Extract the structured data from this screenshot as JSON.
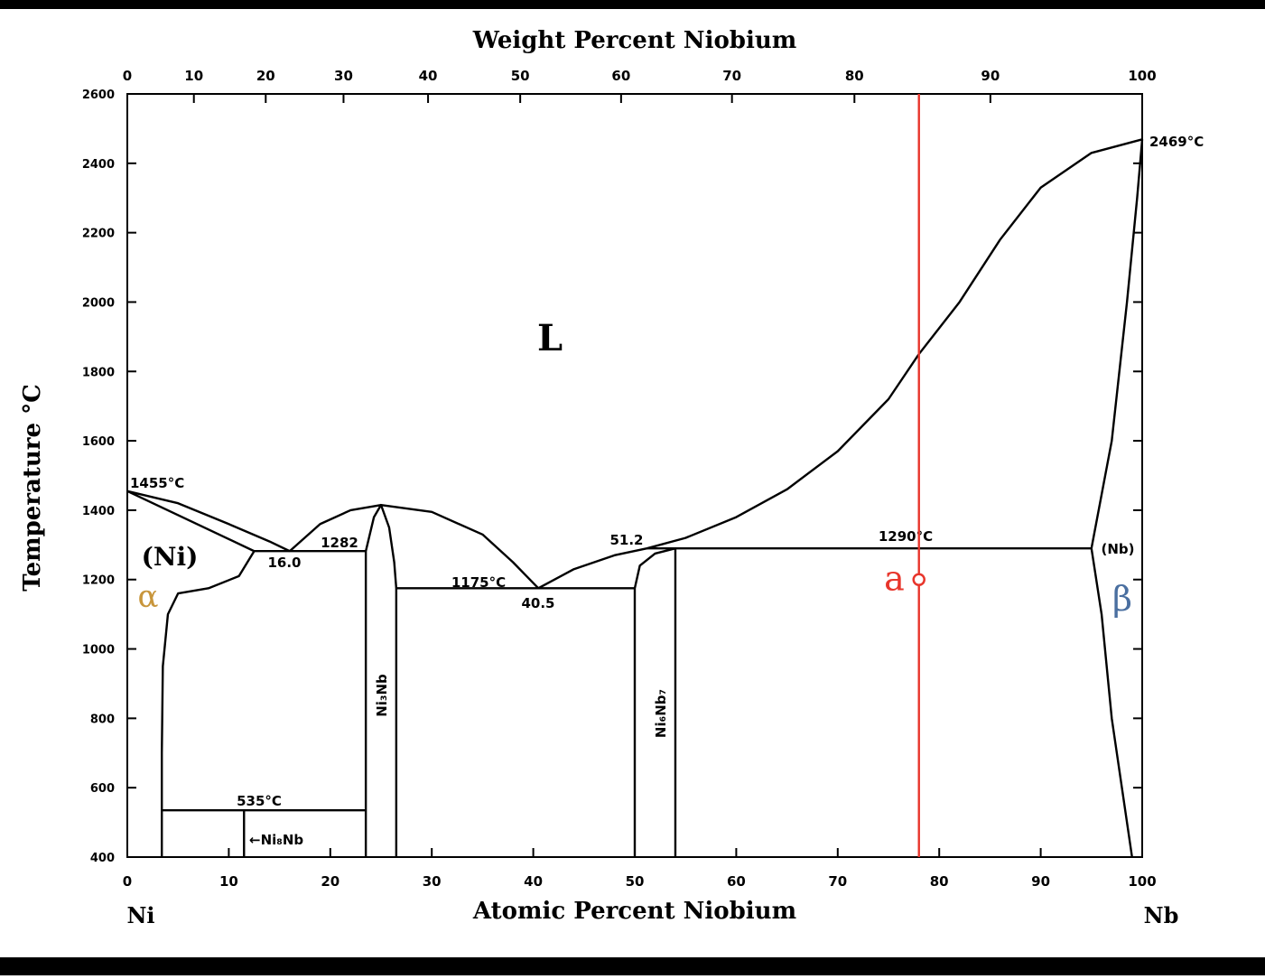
{
  "chart_data": {
    "type": "phase",
    "title": "Weight Percent Niobium",
    "x_label": "Atomic Percent Niobium",
    "y_label": "Temperature °C",
    "left_element": "Ni",
    "right_element": "Nb",
    "xlim": [
      0,
      100
    ],
    "ylim": [
      400,
      2600
    ],
    "xticks": [
      0,
      10,
      20,
      30,
      40,
      50,
      60,
      70,
      80,
      90,
      100
    ],
    "yticks": [
      400,
      600,
      800,
      1000,
      1200,
      1400,
      1600,
      1800,
      2000,
      2200,
      2400,
      2600
    ],
    "x2ticks": [
      0,
      10,
      20,
      30,
      40,
      50,
      60,
      70,
      80,
      90,
      100
    ],
    "grid": false,
    "series": [
      {
        "color": "#000000",
        "x": [
          0,
          5,
          10,
          14,
          16
        ],
        "values": [
          1455,
          1420,
          1360,
          1310,
          1282
        ]
      },
      {
        "color": "#000000",
        "x": [
          0,
          12.5
        ],
        "values": [
          1455,
          1282
        ]
      },
      {
        "color": "#000000",
        "x": [
          12.5,
          11,
          8,
          5,
          4,
          3.5,
          3.4,
          3.4
        ],
        "values": [
          1282,
          1210,
          1175,
          1160,
          1100,
          950,
          700,
          400
        ]
      },
      {
        "color": "#000000",
        "x": [
          12.5,
          23.5
        ],
        "values": [
          1282,
          1282
        ]
      },
      {
        "color": "#000000",
        "x": [
          16,
          19,
          22,
          25
        ],
        "values": [
          1282,
          1360,
          1400,
          1415
        ]
      },
      {
        "color": "#000000",
        "x": [
          25,
          30,
          35,
          38,
          40.5
        ],
        "values": [
          1415,
          1395,
          1330,
          1250,
          1175
        ]
      },
      {
        "color": "#000000",
        "x": [
          23.5,
          23.5,
          24.3,
          25,
          25.8,
          26.3,
          26.5,
          26.5
        ],
        "values": [
          400,
          1282,
          1380,
          1415,
          1350,
          1250,
          1175,
          400
        ]
      },
      {
        "color": "#000000",
        "x": [
          26.5,
          50
        ],
        "values": [
          1175,
          1175
        ]
      },
      {
        "color": "#000000",
        "x": [
          40.5,
          44,
          48,
          51.2,
          55,
          60,
          65,
          70,
          75,
          78,
          82,
          86,
          90,
          95,
          100
        ],
        "values": [
          1175,
          1230,
          1270,
          1290,
          1320,
          1380,
          1460,
          1570,
          1720,
          1850,
          2000,
          2180,
          2330,
          2430,
          2469
        ]
      },
      {
        "color": "#000000",
        "x": [
          50,
          50,
          50.5,
          52,
          54,
          54
        ],
        "values": [
          400,
          1175,
          1240,
          1275,
          1290,
          400
        ]
      },
      {
        "color": "#000000",
        "x": [
          51.2,
          95
        ],
        "values": [
          1290,
          1290
        ]
      },
      {
        "color": "#000000",
        "x": [
          95,
          97,
          98.5,
          99.5,
          100
        ],
        "values": [
          1290,
          1600,
          2000,
          2300,
          2469
        ]
      },
      {
        "color": "#000000",
        "x": [
          95,
          96,
          97,
          98,
          99
        ],
        "values": [
          1290,
          1100,
          800,
          600,
          400
        ]
      },
      {
        "color": "#000000",
        "x": [
          3.4,
          23.5
        ],
        "values": [
          535,
          535
        ]
      },
      {
        "color": "#000000",
        "x": [
          11.5,
          11.5
        ],
        "values": [
          400,
          535
        ]
      },
      {
        "color": "#e8352b",
        "x": [
          78,
          78
        ],
        "values": [
          400,
          2600
        ]
      }
    ],
    "point": {
      "label": "a",
      "x": 78,
      "y": 1200,
      "color": "#e8352b"
    },
    "annotations": [
      "1455°C",
      "(Ni)",
      "16.0",
      "1282",
      "1175°C",
      "40.5",
      "51.2",
      "1290°C",
      "(Nb)",
      "2469°C",
      "535°C",
      "←Ni₈Nb",
      "L",
      "α",
      "β",
      "Ni₃Nb",
      "Ni₆Nb₇"
    ]
  }
}
